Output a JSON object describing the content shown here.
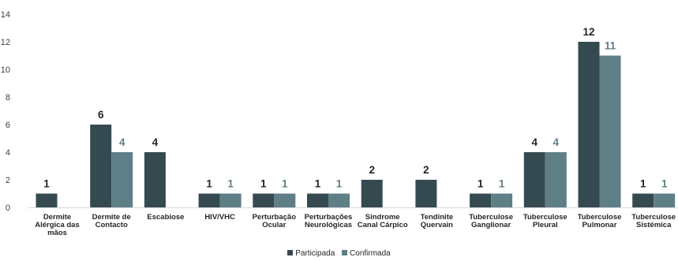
{
  "chart_data": {
    "type": "bar",
    "categories": [
      [
        "Dermite",
        "Alérgica das",
        "mãos"
      ],
      [
        "Dermite de",
        "Contacto"
      ],
      [
        "Escabiose"
      ],
      [
        "HIV/VHC"
      ],
      [
        "Perturbação",
        "Ocular"
      ],
      [
        "Perturbações",
        "Neurológicas"
      ],
      [
        "Síndrome",
        "Canal Cárpico"
      ],
      [
        "Tendinite",
        "Quervain"
      ],
      [
        "Tuberculose",
        "Ganglionar"
      ],
      [
        "Tuberculose",
        "Pleural"
      ],
      [
        "Tuberculose",
        "Pulmonar"
      ],
      [
        "Tuberculose",
        "Sistémica"
      ]
    ],
    "series": [
      {
        "name": "Participada",
        "color": "#354a50",
        "values": [
          1,
          6,
          4,
          1,
          1,
          1,
          2,
          2,
          1,
          4,
          12,
          1
        ]
      },
      {
        "name": "Confirmada",
        "color": "#5f7f87",
        "values": [
          null,
          4,
          null,
          1,
          1,
          1,
          null,
          null,
          1,
          4,
          11,
          1
        ]
      }
    ],
    "ylim": [
      0,
      14
    ],
    "yticks": [
      0,
      2,
      4,
      6,
      8,
      10,
      12,
      14
    ],
    "grid": false,
    "legend": "bottom",
    "label_colors": [
      "#262626",
      "#5f7f87"
    ]
  }
}
